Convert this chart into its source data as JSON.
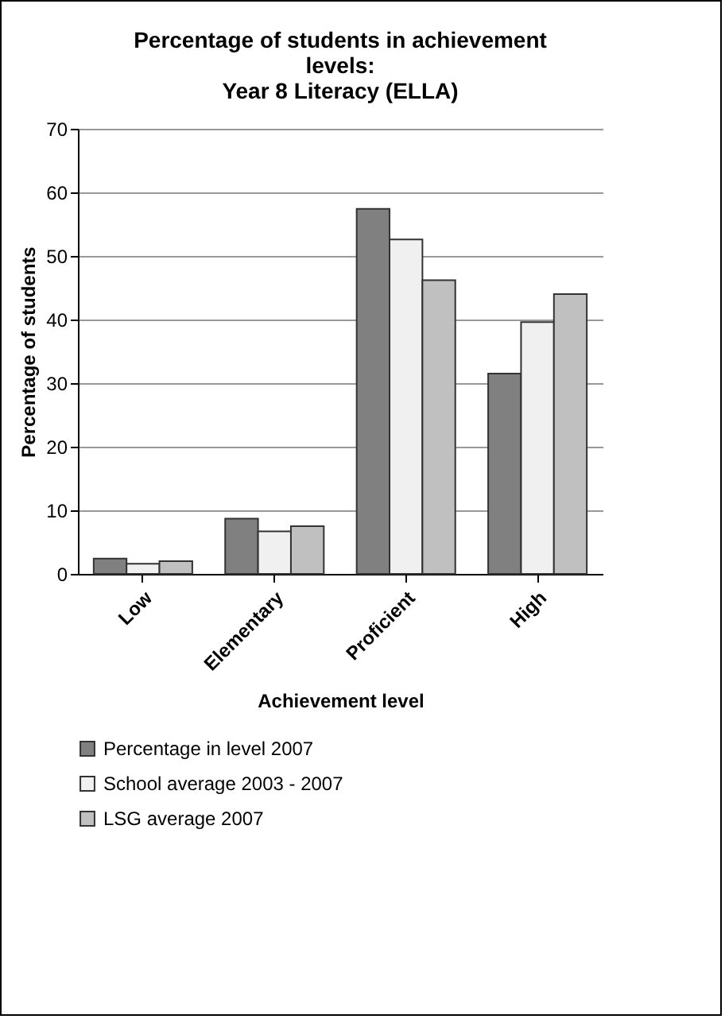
{
  "chart_data": {
    "type": "bar",
    "title": "Percentage of students in achievement levels:",
    "subtitle": "Year 8 Literacy (ELLA)",
    "xlabel": "Achievement level",
    "ylabel": "Percentage of students",
    "categories": [
      "Low",
      "Elementary",
      "Proficient",
      "High"
    ],
    "series": [
      {
        "name": "Percentage in level 2007",
        "color": "#808080",
        "values": [
          2.4,
          8.7,
          57.4,
          31.5
        ]
      },
      {
        "name": "School average 2003 - 2007",
        "color": "#f0f0f0",
        "values": [
          1.6,
          6.7,
          52.6,
          39.6
        ]
      },
      {
        "name": "LSG average 2007",
        "color": "#c0c0c0",
        "values": [
          2.0,
          7.5,
          46.2,
          44.0
        ]
      }
    ],
    "ylim": [
      0,
      70
    ],
    "yticks": [
      0,
      10,
      20,
      30,
      40,
      50,
      60,
      70
    ],
    "grid": "y",
    "legend": "bottom"
  }
}
